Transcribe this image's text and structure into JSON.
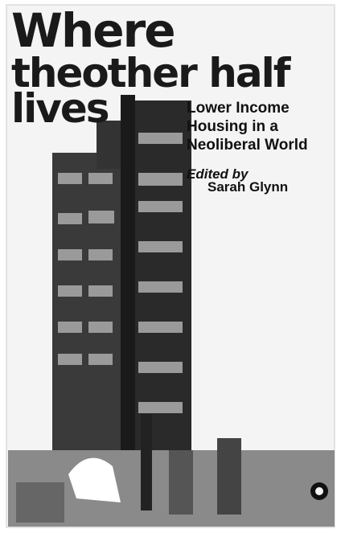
{
  "cover": {
    "title_lines": [
      "Where",
      "theother half",
      "lives"
    ],
    "subtitle_lines": [
      "Lower Income",
      "Housing in a",
      "Neoliberal World"
    ],
    "editor_label": "Edited by",
    "editor": "Sarah Glynn"
  }
}
